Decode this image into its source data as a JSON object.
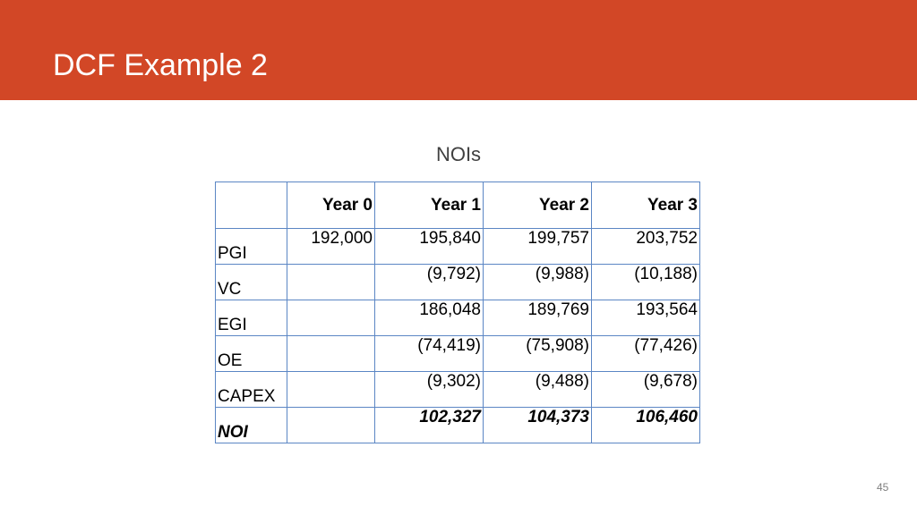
{
  "slide": {
    "title": "DCF Example 2",
    "page_number": "45"
  },
  "colors": {
    "banner": "#d24726",
    "table_border": "#5b86c4"
  },
  "table": {
    "caption": "NOIs",
    "headers": [
      "",
      "Year 0",
      "Year  1",
      "Year  2",
      "Year  3"
    ],
    "rows": [
      [
        "PGI",
        "192,000",
        "195,840",
        "199,757",
        "203,752"
      ],
      [
        "VC",
        "",
        "(9,792)",
        "(9,988)",
        "(10,188)"
      ],
      [
        "EGI",
        "",
        "186,048",
        "189,769",
        "193,564"
      ],
      [
        "OE",
        "",
        "(74,419)",
        "(75,908)",
        "(77,426)"
      ],
      [
        "CAPEX",
        "",
        "(9,302)",
        "(9,488)",
        "(9,678)"
      ],
      [
        "NOI",
        "",
        "102,327",
        "104,373",
        "106,460"
      ]
    ]
  }
}
